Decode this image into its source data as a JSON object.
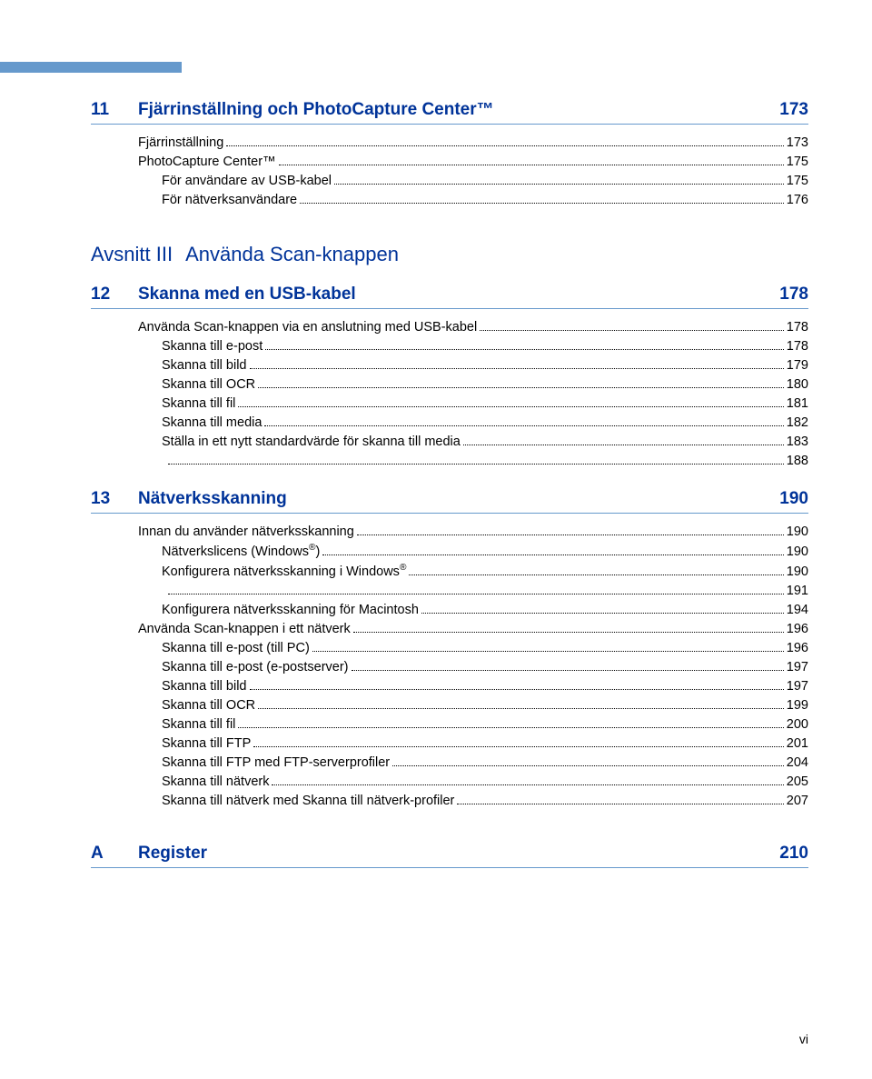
{
  "colors": {
    "accent": "#6699cc",
    "heading": "#003399",
    "text": "#000000",
    "background": "#ffffff"
  },
  "ch11": {
    "num": "11",
    "title": "Fjärrinställning och PhotoCapture Center™",
    "page": "173",
    "entries": [
      {
        "text": "Fjärrinställning",
        "page": "173",
        "indent": 0
      },
      {
        "text": "PhotoCapture Center™",
        "page": "175",
        "indent": 0
      },
      {
        "text": "För användare av USB-kabel",
        "page": "175",
        "indent": 1
      },
      {
        "text": "För nätverksanvändare",
        "page": "176",
        "indent": 1
      }
    ]
  },
  "section3": {
    "label": "Avsnitt III",
    "name": "Använda Scan-knappen"
  },
  "ch12": {
    "num": "12",
    "title": "Skanna med en USB-kabel",
    "page": "178",
    "entries": [
      {
        "text": "Använda Scan-knappen via en anslutning med USB-kabel",
        "page": "178",
        "indent": 0
      },
      {
        "text": "Skanna till e-post",
        "page": "178",
        "indent": 1
      },
      {
        "text": "Skanna till bild",
        "page": "179",
        "indent": 1
      },
      {
        "text": "Skanna till OCR",
        "page": "180",
        "indent": 1
      },
      {
        "text": "Skanna till fil",
        "page": "181",
        "indent": 1
      },
      {
        "text": "Skanna till media",
        "page": "182",
        "indent": 1
      },
      {
        "text": "Ställa in ett nytt standardvärde för skanna till media",
        "page": "183",
        "indent": 1,
        "trail": "188"
      }
    ]
  },
  "ch13": {
    "num": "13",
    "title": "Nätverksskanning",
    "page": "190",
    "entries": [
      {
        "text": "Innan du använder nätverksskanning",
        "page": "190",
        "indent": 0
      },
      {
        "textHtml": "Nätverkslicens (Windows<sup>®</sup>)",
        "page": "190",
        "indent": 1
      },
      {
        "textHtml": "Konfigurera nätverksskanning i Windows<sup>®</sup>",
        "page": "190",
        "indent": 1,
        "trail": "191"
      },
      {
        "text": "Konfigurera nätverksskanning för Macintosh",
        "page": "194",
        "indent": 1
      },
      {
        "text": "Använda Scan-knappen i ett nätverk",
        "page": "196",
        "indent": 0
      },
      {
        "text": "Skanna till e-post (till PC)",
        "page": "196",
        "indent": 1
      },
      {
        "text": "Skanna till e-post (e-postserver)",
        "page": "197",
        "indent": 1
      },
      {
        "text": "Skanna till bild",
        "page": "197",
        "indent": 1
      },
      {
        "text": "Skanna till OCR",
        "page": "199",
        "indent": 1
      },
      {
        "text": "Skanna till fil",
        "page": "200",
        "indent": 1
      },
      {
        "text": "Skanna till FTP",
        "page": "201",
        "indent": 1
      },
      {
        "text": "Skanna till FTP med FTP-serverprofiler",
        "page": "204",
        "indent": 1
      },
      {
        "text": "Skanna till nätverk",
        "page": "205",
        "indent": 1
      },
      {
        "text": "Skanna till nätverk med Skanna till nätverk-profiler",
        "page": "207",
        "indent": 1
      }
    ]
  },
  "appA": {
    "num": "A",
    "title": "Register",
    "page": "210"
  },
  "pageNumber": "vi"
}
